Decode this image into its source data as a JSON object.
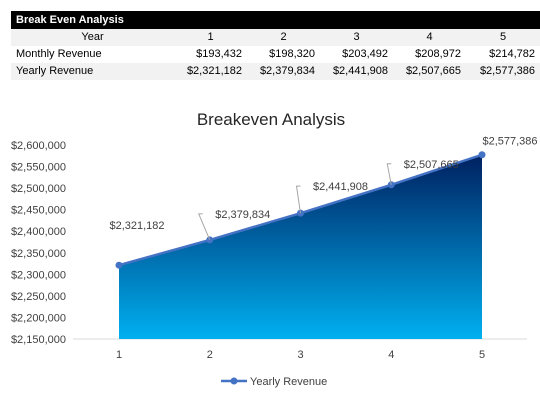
{
  "table": {
    "title": "Break Even Analysis",
    "year_label": "Year",
    "years": [
      "1",
      "2",
      "3",
      "4",
      "5"
    ],
    "rows": [
      {
        "label": "Monthly Revenue",
        "values": [
          "$193,432",
          "$198,320",
          "$203,492",
          "$208,972",
          "$214,782"
        ]
      },
      {
        "label": "Yearly Revenue",
        "values": [
          "$2,321,182",
          "$2,379,834",
          "$2,441,908",
          "$2,507,665",
          "$2,577,386"
        ]
      }
    ]
  },
  "chart_data": {
    "type": "area",
    "title": "Breakeven Analysis",
    "categories": [
      "1",
      "2",
      "3",
      "4",
      "5"
    ],
    "series": [
      {
        "name": "Yearly Revenue",
        "values": [
          2321182,
          2379834,
          2441908,
          2507665,
          2577386
        ]
      }
    ],
    "data_labels": [
      "$2,321,182",
      "$2,379,834",
      "$2,441,908",
      "$2,507,665",
      "$2,577,386"
    ],
    "ylim": [
      2150000,
      2600000
    ],
    "yticks": [
      {
        "value": 2150000,
        "label": "$2,150,000"
      },
      {
        "value": 2200000,
        "label": "$2,200,000"
      },
      {
        "value": 2250000,
        "label": "$2,250,000"
      },
      {
        "value": 2300000,
        "label": "$2,300,000"
      },
      {
        "value": 2350000,
        "label": "$2,350,000"
      },
      {
        "value": 2400000,
        "label": "$2,400,000"
      },
      {
        "value": 2450000,
        "label": "$2,450,000"
      },
      {
        "value": 2500000,
        "label": "$2,500,000"
      },
      {
        "value": 2550000,
        "label": "$2,550,000"
      },
      {
        "value": 2600000,
        "label": "$2,600,000"
      }
    ],
    "grid": false,
    "legend": "bottom",
    "colors": {
      "line": "#4472c4",
      "fill_top": "#002060",
      "fill_bottom": "#00b0f0"
    }
  }
}
